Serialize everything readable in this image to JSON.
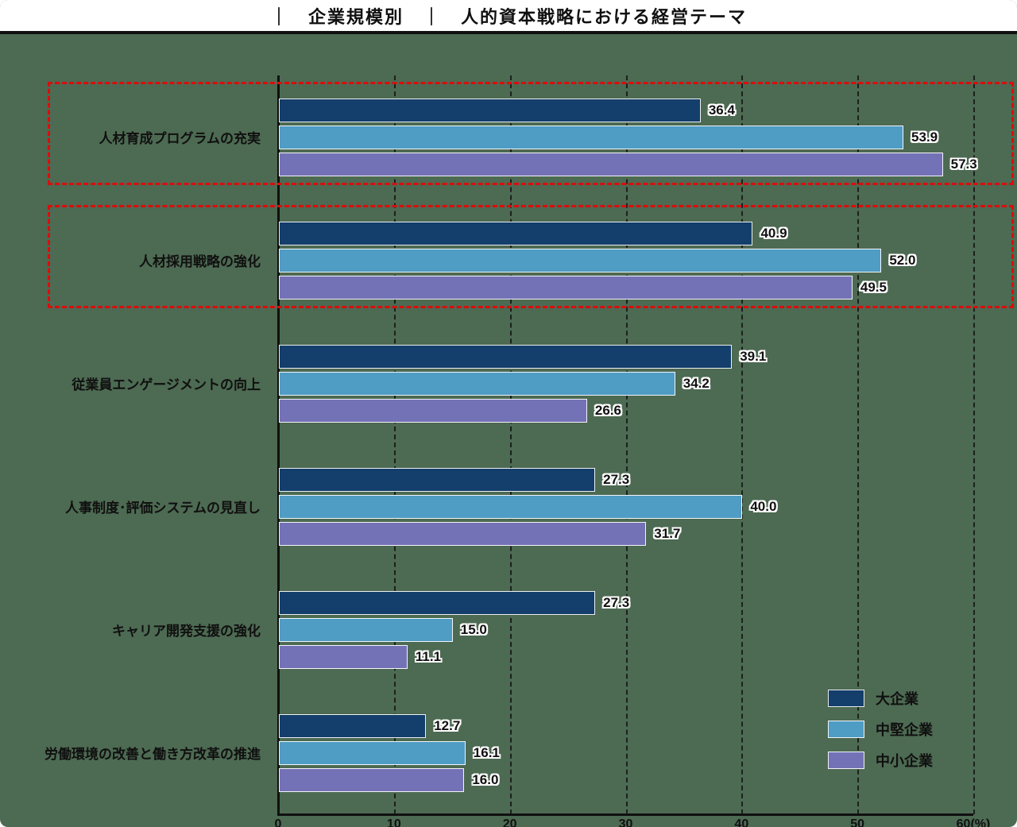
{
  "header": {
    "title": "｜　企業規模別　｜　人的資本戦略における経営テーマ"
  },
  "colors": {
    "background": "#4d6a52",
    "axis": "#101010",
    "highlight_border": "#dd0c0c"
  },
  "chart_data": {
    "type": "bar",
    "orientation": "horizontal",
    "title": "企業規模別 人的資本戦略における経営テーマ",
    "categories": [
      "人材育成プログラムの充実",
      "人材採用戦略の強化",
      "従業員エンゲージメントの向上",
      "人事制度･評価システムの見直し",
      "キャリア開発支援の強化",
      "労働環境の改善と働き方改革の推進"
    ],
    "series": [
      {
        "name": "大企業",
        "color": "#143e6b",
        "values": [
          36.4,
          40.9,
          39.1,
          27.3,
          27.3,
          12.7
        ]
      },
      {
        "name": "中堅企業",
        "color": "#4f9cc4",
        "values": [
          53.9,
          52.0,
          34.2,
          40.0,
          15.0,
          16.1
        ]
      },
      {
        "name": "中小企業",
        "color": "#7472b6",
        "values": [
          57.3,
          49.5,
          26.6,
          31.7,
          11.1,
          16.0
        ]
      }
    ],
    "xlim": [
      0,
      60
    ],
    "x_ticks": [
      {
        "label": "0",
        "value": 0
      },
      {
        "label": "10",
        "value": 10
      },
      {
        "label": "20",
        "value": 20
      },
      {
        "label": "30",
        "value": 30
      },
      {
        "label": "40",
        "value": 40
      },
      {
        "label": "50",
        "value": 50
      },
      {
        "label": "60(%)",
        "value": 60
      }
    ],
    "grid": "dashed-vertical",
    "legend_position": "bottom-right",
    "highlighted_categories": [
      0,
      1
    ]
  }
}
